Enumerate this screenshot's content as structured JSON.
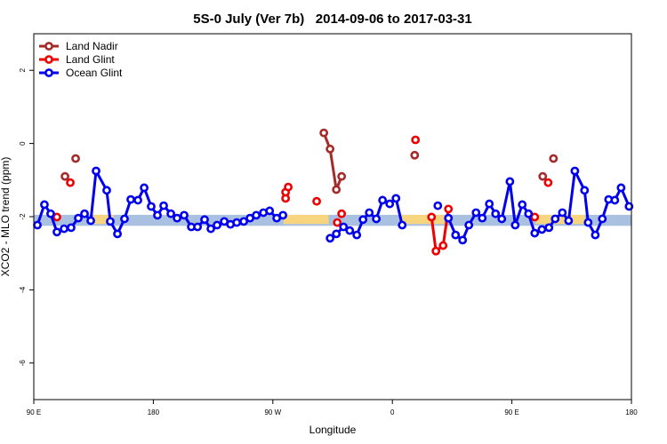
{
  "chart_data": {
    "type": "line",
    "title": "5S-0 July (Ver 7b)   2014-09-06 to 2017-03-31",
    "x_label": "Longitude",
    "y_label": "XCO2 - MLO trend (ppm)",
    "xlim": [
      90,
      540
    ],
    "ylim": [
      -7,
      3
    ],
    "xticks": [
      {
        "value": 90,
        "label": "90 E"
      },
      180,
      {
        "value": 270,
        "label": "90 W"
      },
      {
        "value": 360,
        "label": "0"
      },
      {
        "value": 450,
        "label": "90 E"
      },
      {
        "value": 540,
        "label": "180"
      }
    ],
    "yticks": [
      -6,
      -4,
      -2,
      0,
      2
    ],
    "legend": "top-left",
    "bands": [
      {
        "xlim": [
          90,
          540
        ],
        "ylim": [
          -2.25,
          -1.95
        ],
        "color": "#a9c0e0"
      },
      {
        "xlim": [
          135,
          150
        ],
        "ylim": [
          -2.2,
          -1.95
        ],
        "color": "#f7d57e"
      },
      {
        "xlim": [
          278,
          312
        ],
        "ylim": [
          -2.2,
          -1.95
        ],
        "color": "#f7d57e"
      },
      {
        "xlim": [
          367,
          399
        ],
        "ylim": [
          -2.2,
          -1.95
        ],
        "color": "#f7d57e"
      },
      {
        "xlim": [
          468,
          505
        ],
        "ylim": [
          -2.2,
          -1.95
        ],
        "color": "#f7d57e"
      }
    ],
    "series": [
      {
        "name": "Land Nadir",
        "color": "#a52a2a",
        "x": [
          113.5,
          null,
          121.5,
          null,
          308.4,
          313.1,
          317.8,
          321.8,
          null,
          376.8,
          null,
          473.2,
          null,
          481.3
        ],
        "values": [
          -0.9,
          null,
          -0.41,
          null,
          0.29,
          -0.15,
          -1.26,
          -0.9,
          null,
          -0.32,
          null,
          -0.9,
          null,
          -0.41
        ]
      },
      {
        "name": "Land Glint",
        "color": "#ee0000",
        "x": [
          107.4,
          null,
          117.5,
          null,
          279.6,
          null,
          279.6,
          null,
          281.6,
          null,
          303,
          null,
          318.5,
          null,
          321.8,
          null,
          377.4,
          null,
          389.5,
          392.8,
          398.2,
          402.2,
          null,
          467.2,
          null,
          477.3
        ],
        "values": [
          -2.01,
          null,
          -1.07,
          null,
          -1.5,
          null,
          -1.33,
          null,
          -1.19,
          null,
          -1.58,
          null,
          -2.16,
          null,
          -1.92,
          null,
          0.1,
          null,
          -2.01,
          -2.94,
          -2.79,
          -1.79,
          null,
          -2.01,
          null,
          -1.07
        ]
      },
      {
        "name": "Ocean Glint",
        "color": "#0000ee",
        "x": [
          92.7,
          98,
          102.7,
          107.4,
          112.8,
          118.1,
          123.5,
          128.2,
          132.9,
          136.9,
          144.9,
          147.6,
          153,
          158.3,
          163,
          168.4,
          173.1,
          178.4,
          183.1,
          187.8,
          193.2,
          197.9,
          203.2,
          208.6,
          213.3,
          218.6,
          223.3,
          228,
          233.4,
          238.1,
          242.8,
          248.1,
          252.8,
          257.5,
          262.9,
          267.6,
          272.9,
          277.6,
          null,
          313.1,
          317.8,
          323.2,
          327.9,
          333.2,
          337.9,
          342.6,
          347.9,
          352.6,
          358,
          362.7,
          367.4,
          null,
          394.2,
          null,
          402.2,
          407.6,
          412.9,
          417.6,
          423,
          427.7,
          433,
          437.7,
          442.4,
          448.5,
          452.5,
          457.8,
          462.5,
          467.2,
          472.6,
          477.9,
          482.6,
          488,
          492.7,
          497.4,
          504.7,
          507.4,
          512.8,
          518.1,
          522.8,
          527.5,
          532.2,
          538.2
        ],
        "values": [
          -2.23,
          -1.67,
          -1.92,
          -2.42,
          -2.33,
          -2.3,
          -2.04,
          -1.92,
          -2.11,
          -0.75,
          -1.28,
          -2.13,
          -2.47,
          -2.06,
          -1.53,
          -1.55,
          -1.21,
          -1.72,
          -1.96,
          -1.7,
          -1.92,
          -2.04,
          -1.96,
          -2.28,
          -2.28,
          -2.08,
          -2.33,
          -2.23,
          -2.13,
          -2.21,
          -2.16,
          -2.13,
          -2.04,
          -1.96,
          -1.89,
          -1.84,
          -2.04,
          -1.96,
          null,
          -2.59,
          -2.47,
          -2.28,
          -2.38,
          -2.5,
          -2.08,
          -1.89,
          -2.06,
          -1.55,
          -1.65,
          -1.5,
          -2.23,
          null,
          -1.7,
          null,
          -2.04,
          -2.5,
          -2.64,
          -2.23,
          -1.89,
          -2.04,
          -1.65,
          -1.92,
          -2.06,
          -1.04,
          -2.23,
          -1.67,
          -1.92,
          -2.45,
          -2.35,
          -2.3,
          -2.06,
          -1.89,
          -2.11,
          -0.75,
          -1.28,
          -2.16,
          -2.5,
          -2.06,
          -1.53,
          -1.55,
          -1.21,
          -1.72
        ]
      }
    ]
  }
}
